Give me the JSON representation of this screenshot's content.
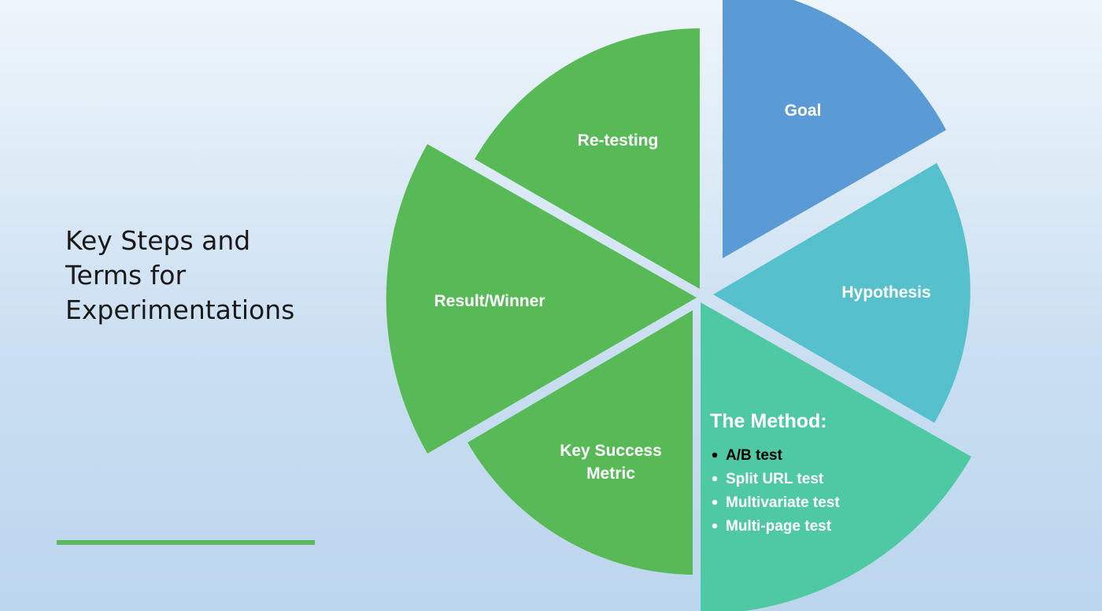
{
  "title_lines": [
    "Key Steps and",
    "Terms for",
    "Experimentations"
  ],
  "colors": {
    "goal": "#5b9bd5",
    "hypothesis": "#56c1cc",
    "method": "#4ec9a4",
    "green": "#58b957",
    "accent_rule": "#5cb85c"
  },
  "segments": {
    "goal": "Goal",
    "hypothesis": "Hypothesis",
    "key_success_metric_line1": "Key Success",
    "key_success_metric_line2": "Metric",
    "result_winner": "Result/Winner",
    "retesting": "Re-testing"
  },
  "method": {
    "heading": "The Method:",
    "items": [
      "A/B test",
      "Split URL test",
      "Multivariate test",
      "Multi-page test"
    ]
  }
}
